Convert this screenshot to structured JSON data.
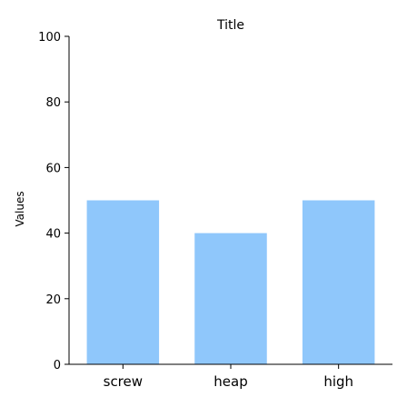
{
  "chart_data": {
    "type": "bar",
    "title": "Title",
    "xlabel": "",
    "ylabel": "Values",
    "categories": [
      "screw",
      "heap",
      "high"
    ],
    "values": [
      50,
      40,
      50
    ],
    "ylim": [
      0,
      100
    ],
    "yticks": [
      0,
      20,
      40,
      60,
      80,
      100
    ],
    "bar_color": "#8fc7fb",
    "grid": false
  }
}
